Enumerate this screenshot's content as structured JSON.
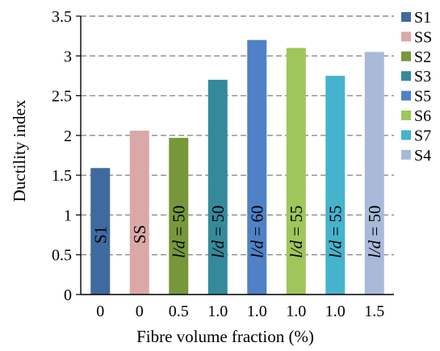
{
  "chart_data": {
    "type": "bar",
    "title": "",
    "xlabel": "Fibre volume fraction (%)",
    "ylabel": "Ductility index",
    "ylim": [
      0,
      3.5
    ],
    "yticks": [
      "0",
      "0.5",
      "1",
      "1.5",
      "2",
      "2.5",
      "3",
      "3.5"
    ],
    "grid": "horizontal dashed",
    "legend_position": "right",
    "categories": [
      "0",
      "0",
      "0.5",
      "1.0",
      "1.0",
      "1.0",
      "1.0",
      "1.5"
    ],
    "series": [
      {
        "name": "S1",
        "value": 1.59,
        "label": "S1",
        "color": "#3f6aa0"
      },
      {
        "name": "SS",
        "value": 2.06,
        "label": "SS",
        "color": "#dba8a8"
      },
      {
        "name": "S2",
        "value": 1.97,
        "label": "l/d = 50",
        "color": "#76983a"
      },
      {
        "name": "S3",
        "value": 2.7,
        "label": "l/d = 50",
        "color": "#348a9b"
      },
      {
        "name": "S5",
        "value": 3.2,
        "label": "l/d = 60",
        "color": "#4f81c7"
      },
      {
        "name": "S6",
        "value": 3.1,
        "label": "l/d = 55",
        "color": "#9fc65a"
      },
      {
        "name": "S7",
        "value": 2.75,
        "label": "l/d = 55",
        "color": "#46b3cd"
      },
      {
        "name": "S4",
        "value": 3.05,
        "label": "l/d = 50",
        "color": "#a9bad9"
      }
    ],
    "legend_order": [
      "S1",
      "SS",
      "S2",
      "S3",
      "S5",
      "S6",
      "S7",
      "S4"
    ]
  }
}
